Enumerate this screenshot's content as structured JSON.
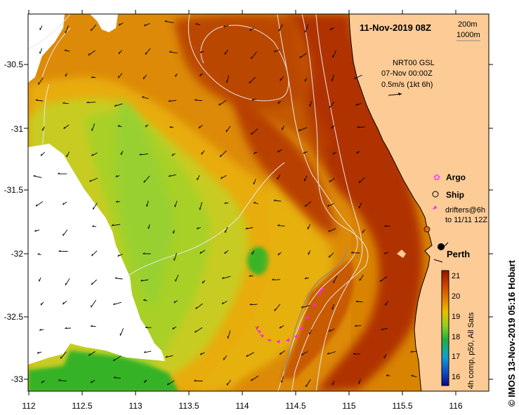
{
  "title": "11-Nov-2019 08Z",
  "isobath_legend": [
    "200m",
    "1000m"
  ],
  "current_info": {
    "line1": "NRT00 GSL",
    "line2": "07-Nov 00:00Z",
    "line3": "0.5m/s (1kt 6h)"
  },
  "legend": {
    "argo": "Argo",
    "ship": "Ship",
    "drifters_line1": "drifters@6h",
    "drifters_line2": "to 11/11 12Z"
  },
  "city": "Perth",
  "colorbar": {
    "ticks": [
      "21",
      "20",
      "19",
      "18",
      "17",
      "16"
    ],
    "label": "4h comp, p50, All Sats"
  },
  "credit": "© IMOS 13-Nov-2019 05:16 Hobart",
  "x_axis_ticks": [
    "112",
    "112.5",
    "113",
    "113.5",
    "114",
    "114.5",
    "115",
    "115.5",
    "116"
  ],
  "y_axis_ticks": [
    "-30.5",
    "-31",
    "-31.5",
    "-32",
    "-32.5",
    "-33"
  ],
  "colors": {
    "land": "#fccb96",
    "sst_21": "#a81f00",
    "sst_20": "#d66800",
    "sst_19": "#e8b600",
    "sst_18": "#99d41a",
    "sst_17": "#30b020",
    "argo": "#ff44ff",
    "drifter": "#ff22ee"
  }
}
